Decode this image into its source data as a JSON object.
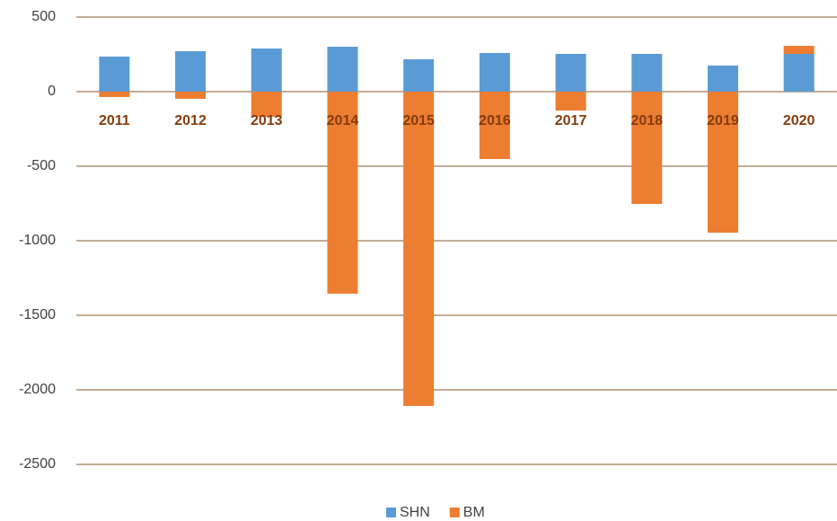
{
  "chart_data": {
    "type": "stacked_bar",
    "categories": [
      "2011",
      "2012",
      "2013",
      "2014",
      "2015",
      "2016",
      "2017",
      "2018",
      "2019",
      "2020"
    ],
    "series": [
      {
        "name": "SHN",
        "color": "#5b9bd5",
        "values": [
          235,
          271,
          289,
          301,
          217,
          259,
          253,
          253,
          175,
          253
        ]
      },
      {
        "name": "BM",
        "color": "#ed7d31",
        "values": [
          -36,
          -48,
          -169,
          -1355,
          -2108,
          -452,
          -127,
          -753,
          -946,
          54
        ]
      }
    ],
    "ylim": [
      -2500,
      500
    ],
    "yticks": [
      500,
      0,
      -500,
      -1000,
      -1500,
      -2000,
      -2500
    ],
    "grid": true,
    "legend": "bottom"
  }
}
